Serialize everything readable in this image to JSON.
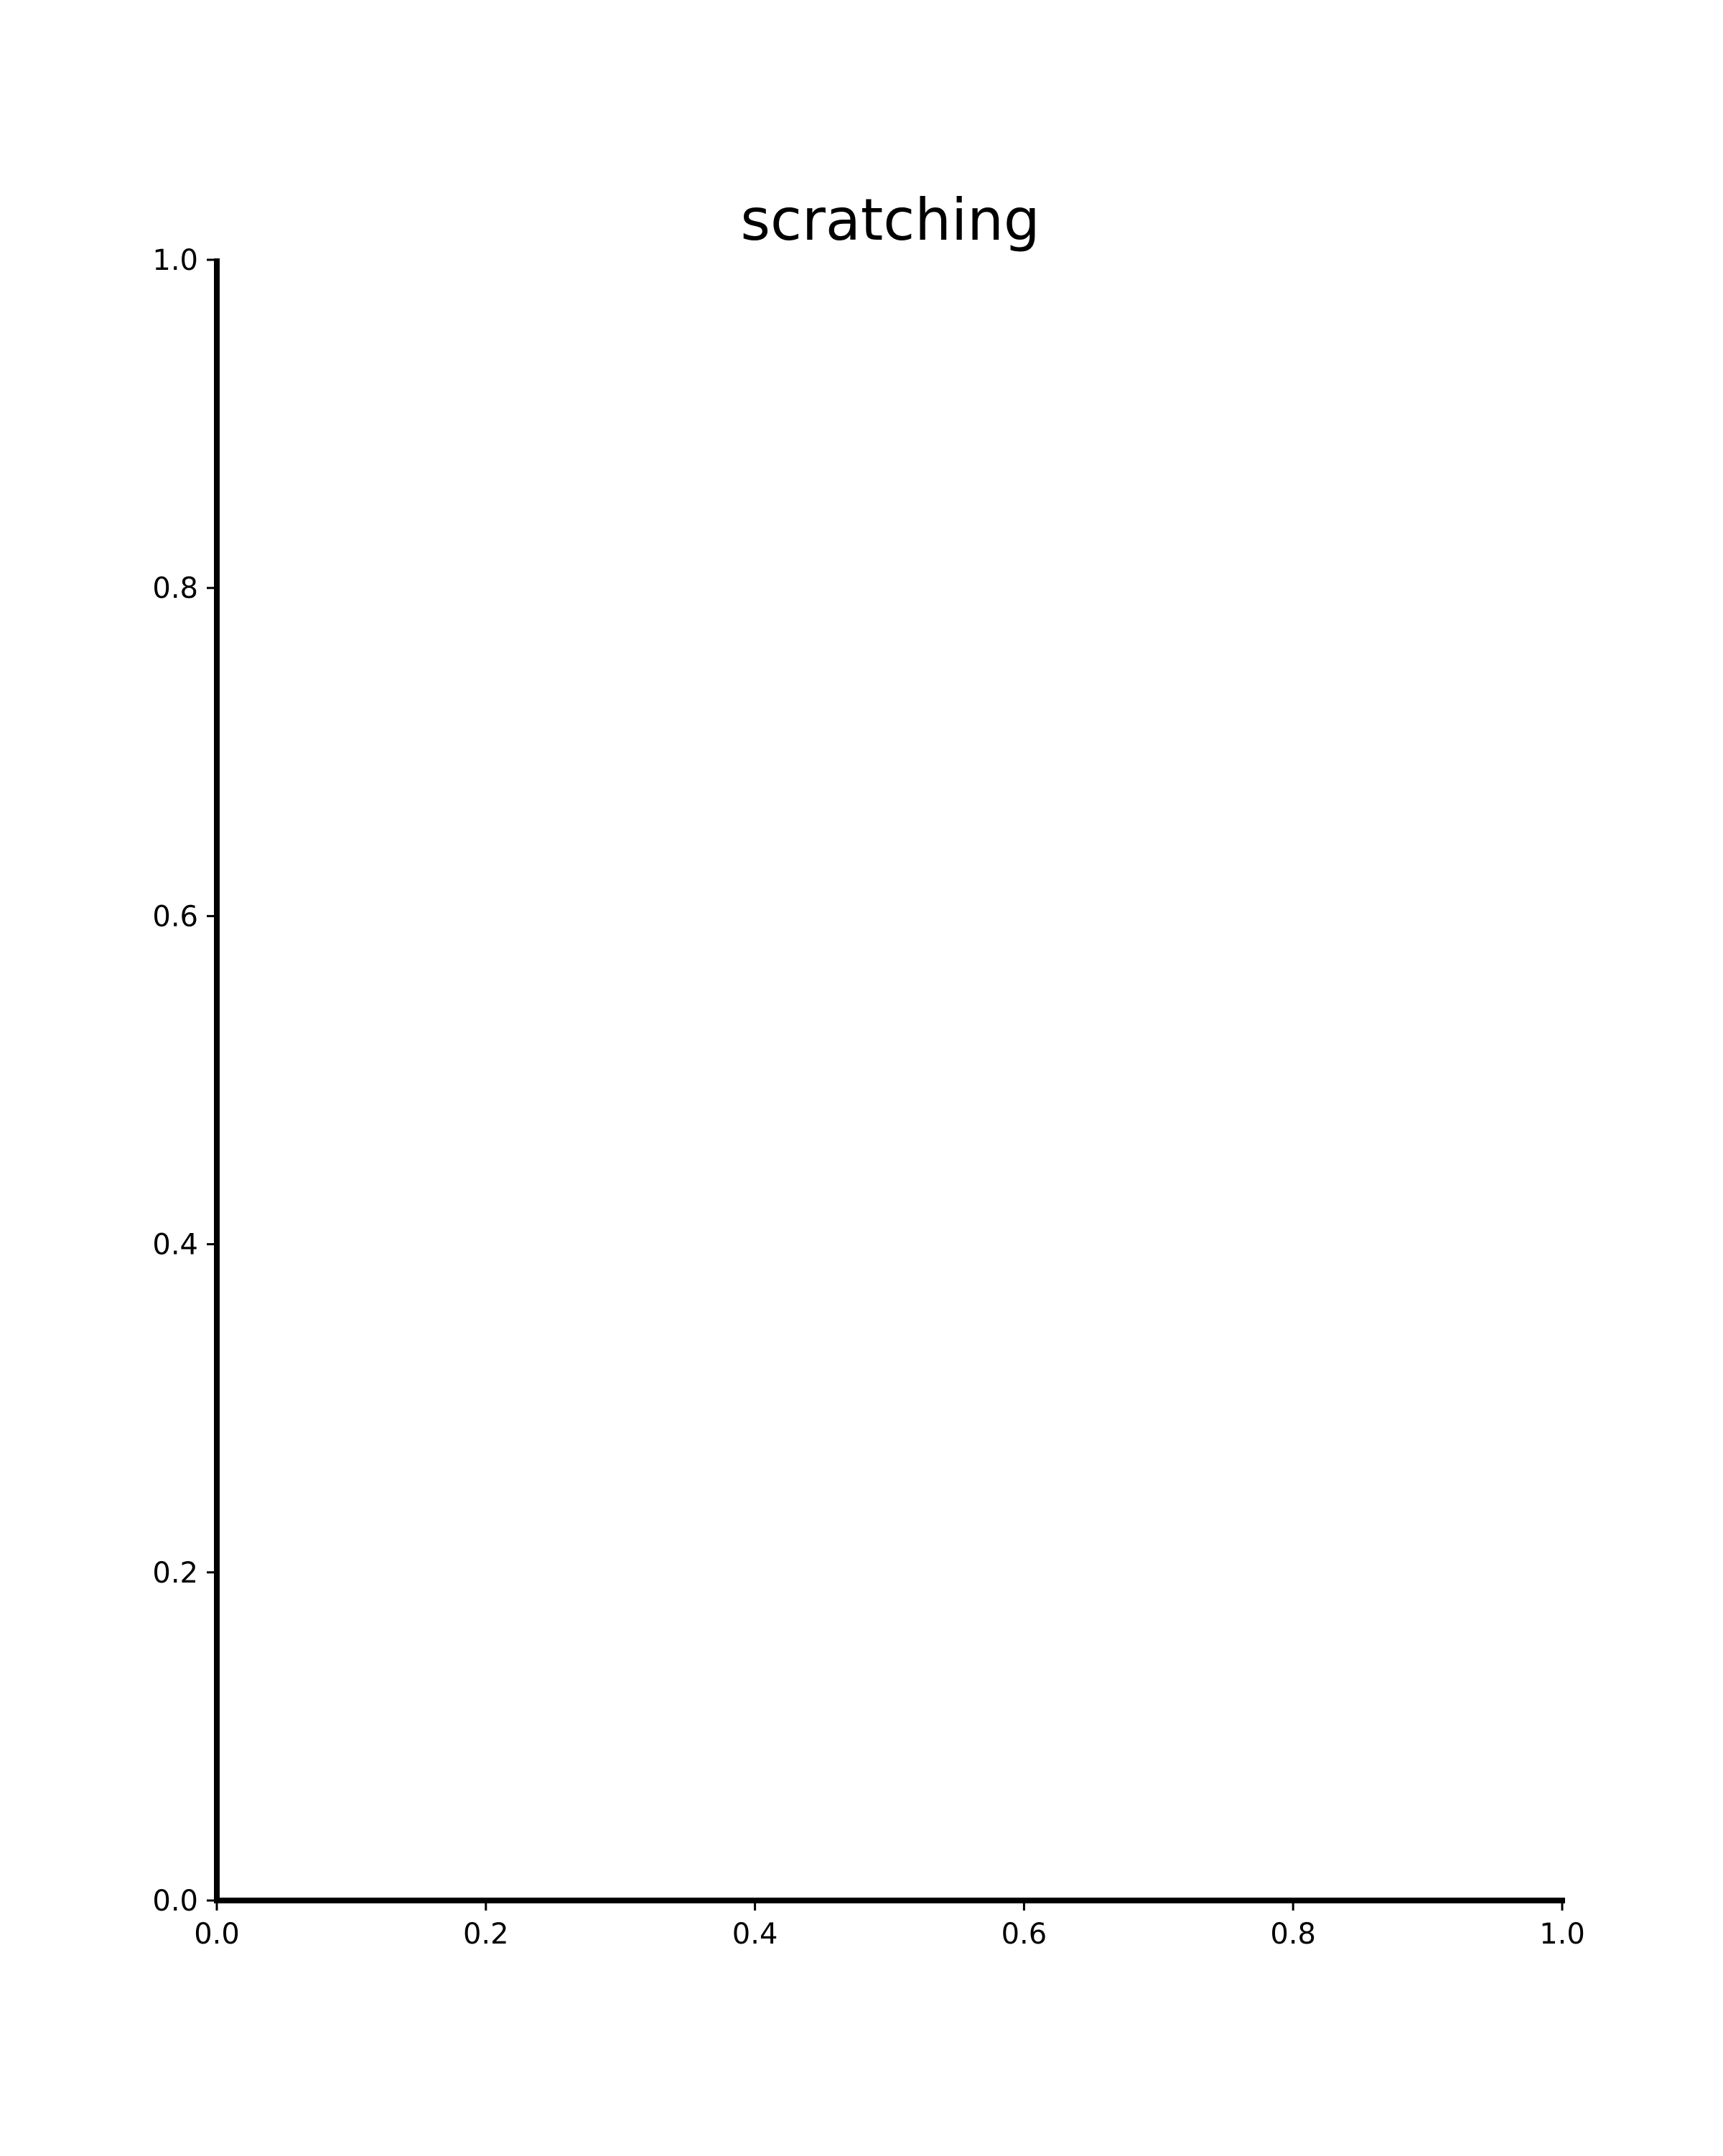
{
  "chart_data": {
    "type": "line",
    "title": "scratching",
    "xlabel": "",
    "ylabel": "",
    "xlim": [
      0.0,
      1.0
    ],
    "ylim": [
      0.0,
      1.0
    ],
    "x_ticks": [
      "0.0",
      "0.2",
      "0.4",
      "0.6",
      "0.8",
      "1.0"
    ],
    "y_ticks": [
      "0.0",
      "0.2",
      "0.4",
      "0.6",
      "0.8",
      "1.0"
    ],
    "series": [],
    "grid": false,
    "spines": [
      "left",
      "bottom"
    ],
    "colors": {
      "axis": "#000000",
      "background": "#ffffff"
    }
  }
}
